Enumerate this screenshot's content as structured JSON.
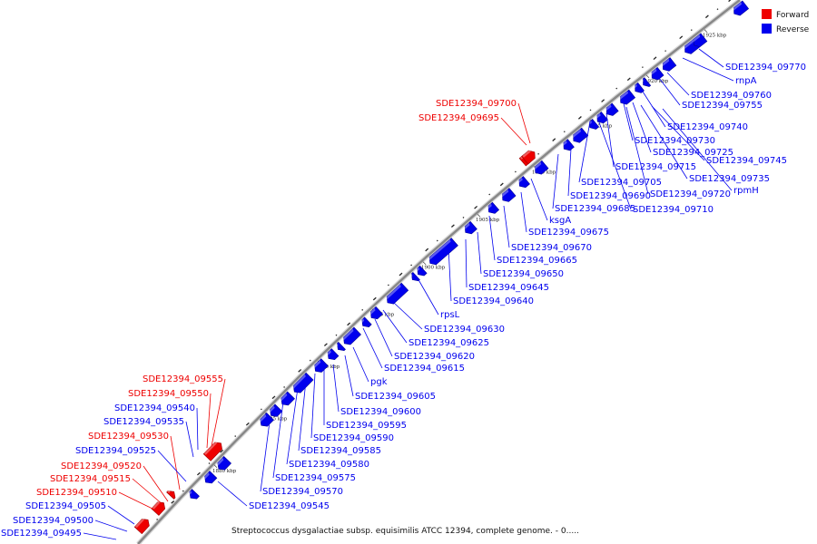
{
  "caption": "Streptococcus dysgalactiae subsp. equisimilis ATCC 12394, complete genome. - 0.....",
  "legend": [
    {
      "label": "Forward",
      "color": "#ee0000"
    },
    {
      "label": "Reverse",
      "color": "#0000ee"
    }
  ],
  "colors": {
    "forward": "#ee0000",
    "reverse": "#0000ee",
    "backbone": "#888888"
  },
  "ticks": [
    "1880 kbp",
    "1885 kbp",
    "1890 kbp",
    "1895 kbp",
    "1900 kbp",
    "1905 kbp",
    "1910 kbp",
    "1915 kbp",
    "1920 kbp",
    "1925 kbp"
  ],
  "forward_labels": [
    "SDE12394_09700",
    "SDE12394_09695",
    "SDE12394_09555",
    "SDE12394_09550",
    "SDE12394_09530",
    "SDE12394_09520",
    "SDE12394_09515",
    "SDE12394_09510"
  ],
  "reverse_labels": [
    "SDE12394_09770",
    "rnpA",
    "SDE12394_09760",
    "SDE12394_09755",
    "SDE12394_09740",
    "SDE12394_09730",
    "SDE12394_09725",
    "SDE12394_09745",
    "SDE12394_09715",
    "SDE12394_09735",
    "SDE12394_09705",
    "rpmH",
    "SDE12394_09690",
    "SDE12394_09720",
    "SDE12394_09685",
    "SDE12394_09710",
    "ksgA",
    "SDE12394_09675",
    "SDE12394_09670",
    "SDE12394_09665",
    "SDE12394_09650",
    "SDE12394_09645",
    "SDE12394_09640",
    "rpsL",
    "SDE12394_09630",
    "SDE12394_09625",
    "SDE12394_09620",
    "SDE12394_09615",
    "pgk",
    "SDE12394_09605",
    "SDE12394_09600",
    "SDE12394_09595",
    "SDE12394_09590",
    "SDE12394_09585",
    "SDE12394_09580",
    "SDE12394_09575",
    "SDE12394_09570",
    "SDE12394_09545",
    "SDE12394_09540",
    "SDE12394_09535",
    "SDE12394_09525",
    "SDE12394_09505",
    "SDE12394_09500",
    "SDE12394_09495"
  ]
}
